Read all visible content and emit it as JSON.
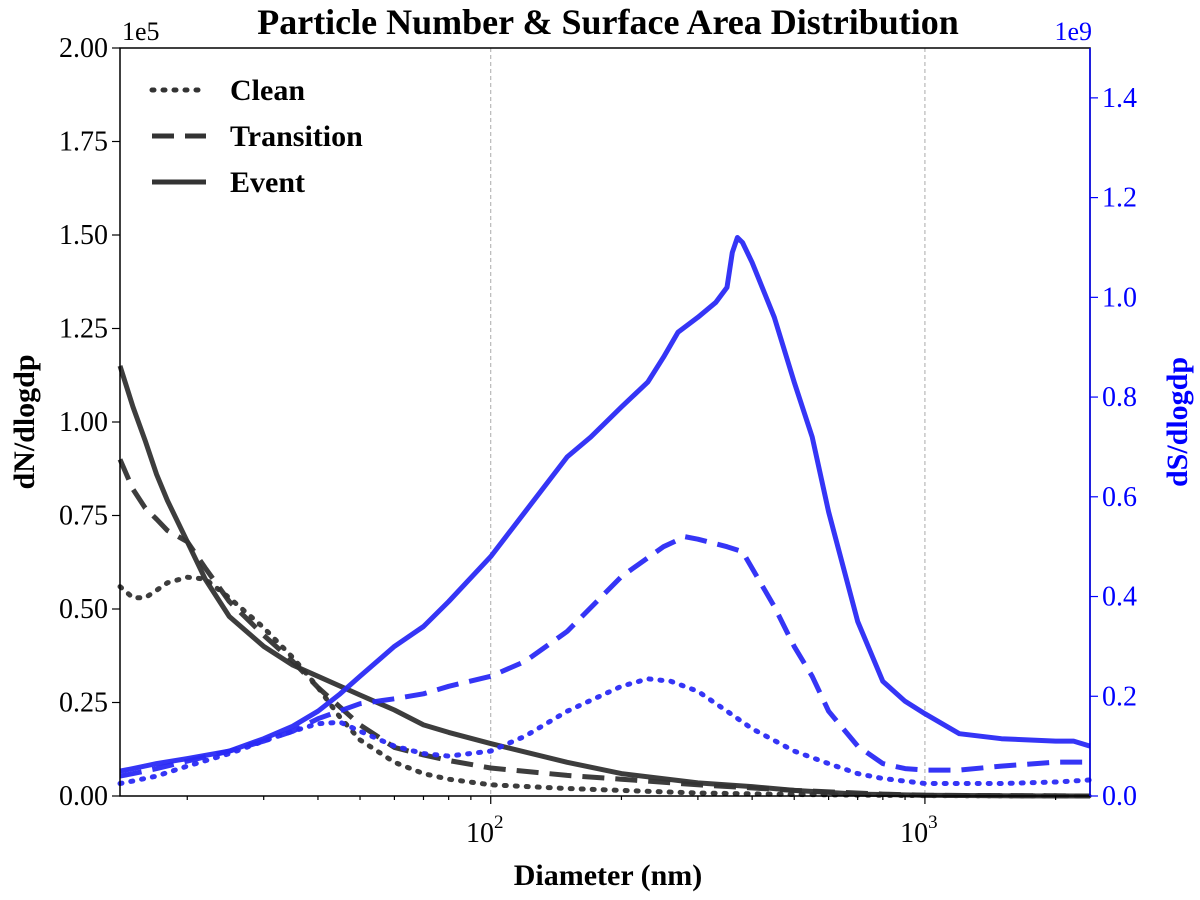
{
  "chart_data": {
    "type": "line",
    "title": "Particle Number & Surface Area Distribution",
    "xlabel": "Diameter (nm)",
    "x_scale": "log",
    "xlim": [
      14,
      2400
    ],
    "x_ticks": [
      100,
      1000
    ],
    "x_tick_labels": [
      {
        "base": "10",
        "exp": "2"
      },
      {
        "base": "10",
        "exp": "3"
      }
    ],
    "grid": "vertical dashed at decades",
    "y_left": {
      "label": "dN/dlogdp",
      "multiplier_label": "1e5",
      "lim": [
        0,
        2.0
      ],
      "ticks": [
        "0.00",
        "0.25",
        "0.50",
        "0.75",
        "1.00",
        "1.25",
        "1.50",
        "1.75",
        "2.00"
      ],
      "color": "#000000"
    },
    "y_right": {
      "label": "dS/dlogdp",
      "multiplier_label": "1e9",
      "lim": [
        0,
        1.5
      ],
      "ticks": [
        "0.0",
        "0.2",
        "0.4",
        "0.6",
        "0.8",
        "1.0",
        "1.2",
        "1.4"
      ],
      "color": "#0000ff"
    },
    "legend": {
      "position": "top-left",
      "entries": [
        {
          "label": "Clean",
          "style": "dotted"
        },
        {
          "label": "Transition",
          "style": "dashed"
        },
        {
          "label": "Event",
          "style": "solid"
        }
      ]
    },
    "colors": {
      "number": "#333333",
      "surface": "#2a2af5"
    },
    "series": [
      {
        "key": "number-clean",
        "axis": "left",
        "style": "dotted",
        "x": [
          14,
          15,
          16,
          17,
          18,
          20,
          22,
          25,
          30,
          35,
          40,
          45,
          50,
          60,
          70,
          80,
          100,
          150,
          200,
          300,
          500,
          800,
          1000,
          1500,
          2400
        ],
        "y": [
          0.56,
          0.53,
          0.53,
          0.55,
          0.57,
          0.585,
          0.58,
          0.53,
          0.45,
          0.37,
          0.29,
          0.21,
          0.15,
          0.09,
          0.06,
          0.045,
          0.03,
          0.02,
          0.015,
          0.008,
          0.004,
          0.002,
          0.001,
          0.0005,
          0.0
        ]
      },
      {
        "key": "number-transition",
        "axis": "left",
        "style": "dashed",
        "x": [
          14,
          15,
          16,
          17,
          18,
          20,
          22,
          25,
          30,
          35,
          40,
          50,
          60,
          70,
          80,
          100,
          150,
          200,
          300,
          500,
          800,
          1000,
          1500,
          2400
        ],
        "y": [
          0.9,
          0.82,
          0.77,
          0.74,
          0.71,
          0.68,
          0.61,
          0.52,
          0.43,
          0.36,
          0.29,
          0.19,
          0.13,
          0.11,
          0.095,
          0.075,
          0.055,
          0.045,
          0.03,
          0.015,
          0.005,
          0.002,
          0.001,
          0.0
        ]
      },
      {
        "key": "number-event",
        "axis": "left",
        "style": "solid",
        "x": [
          14,
          15,
          16,
          17,
          18,
          20,
          22,
          25,
          30,
          35,
          40,
          50,
          60,
          70,
          80,
          100,
          150,
          200,
          300,
          400,
          500,
          700,
          1000,
          1500,
          2400
        ],
        "y": [
          1.15,
          1.04,
          0.95,
          0.86,
          0.79,
          0.68,
          0.58,
          0.48,
          0.4,
          0.35,
          0.32,
          0.27,
          0.23,
          0.19,
          0.17,
          0.14,
          0.09,
          0.06,
          0.035,
          0.025,
          0.015,
          0.005,
          0.002,
          0.0005,
          0.0
        ]
      },
      {
        "key": "surface-clean",
        "axis": "right",
        "style": "dotted",
        "x": [
          14,
          15,
          17,
          20,
          25,
          30,
          35,
          40,
          45,
          50,
          60,
          70,
          80,
          100,
          120,
          150,
          200,
          230,
          260,
          300,
          350,
          400,
          500,
          600,
          700,
          800,
          1000,
          1500,
          2000,
          2400
        ],
        "y": [
          0.025,
          0.03,
          0.04,
          0.06,
          0.085,
          0.11,
          0.13,
          0.145,
          0.148,
          0.13,
          0.1,
          0.085,
          0.08,
          0.09,
          0.12,
          0.17,
          0.22,
          0.235,
          0.23,
          0.21,
          0.17,
          0.135,
          0.09,
          0.065,
          0.045,
          0.035,
          0.025,
          0.025,
          0.028,
          0.032
        ]
      },
      {
        "key": "surface-transition",
        "axis": "right",
        "style": "dashed",
        "x": [
          14,
          15,
          17,
          20,
          25,
          30,
          35,
          40,
          50,
          60,
          70,
          80,
          100,
          120,
          150,
          200,
          250,
          280,
          300,
          350,
          380,
          450,
          500,
          550,
          600,
          700,
          800,
          900,
          1000,
          1200,
          1500,
          2000,
          2400
        ],
        "y": [
          0.04,
          0.045,
          0.055,
          0.07,
          0.09,
          0.11,
          0.13,
          0.155,
          0.185,
          0.195,
          0.205,
          0.22,
          0.24,
          0.27,
          0.33,
          0.44,
          0.5,
          0.52,
          0.515,
          0.5,
          0.49,
          0.38,
          0.3,
          0.24,
          0.17,
          0.1,
          0.065,
          0.055,
          0.052,
          0.052,
          0.06,
          0.068,
          0.068
        ]
      },
      {
        "key": "surface-event",
        "axis": "right",
        "style": "solid",
        "x": [
          14,
          15,
          17,
          20,
          25,
          30,
          35,
          40,
          45,
          50,
          60,
          70,
          80,
          100,
          120,
          150,
          170,
          200,
          230,
          250,
          270,
          300,
          330,
          350,
          360,
          370,
          380,
          400,
          450,
          500,
          550,
          600,
          700,
          800,
          900,
          1000,
          1200,
          1500,
          2000,
          2200,
          2400
        ],
        "y": [
          0.05,
          0.055,
          0.065,
          0.075,
          0.09,
          0.115,
          0.14,
          0.17,
          0.205,
          0.24,
          0.3,
          0.34,
          0.39,
          0.48,
          0.57,
          0.68,
          0.72,
          0.78,
          0.83,
          0.88,
          0.93,
          0.96,
          0.99,
          1.02,
          1.09,
          1.12,
          1.11,
          1.07,
          0.96,
          0.83,
          0.72,
          0.57,
          0.35,
          0.23,
          0.19,
          0.165,
          0.125,
          0.115,
          0.11,
          0.11,
          0.1
        ]
      }
    ]
  }
}
